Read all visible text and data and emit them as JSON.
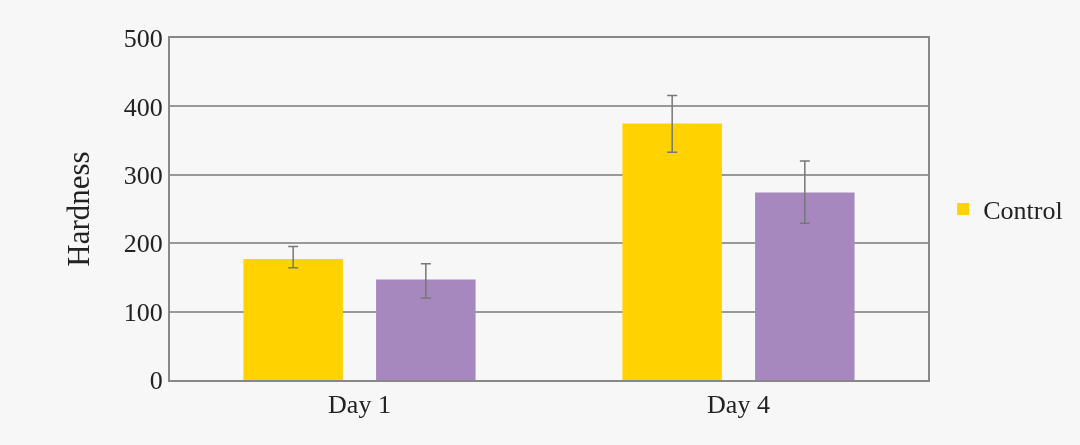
{
  "chart_data": {
    "type": "bar",
    "ylabel": "Hardness",
    "categories": [
      "Day 1",
      "Day 4"
    ],
    "series": [
      {
        "name": "Control",
        "color": "#ffd200",
        "values": [
          177,
          375
        ],
        "errors": [
          [
            164,
            195
          ],
          [
            333,
            416
          ]
        ]
      },
      {
        "color": "#a688bf",
        "values": [
          147,
          274
        ],
        "errors": [
          [
            120,
            170
          ],
          [
            229,
            320
          ]
        ]
      }
    ],
    "ylim": [
      0,
      500
    ],
    "yticks": [
      0,
      100,
      200,
      300,
      400,
      500
    ],
    "grid": "y",
    "legend": "right"
  }
}
